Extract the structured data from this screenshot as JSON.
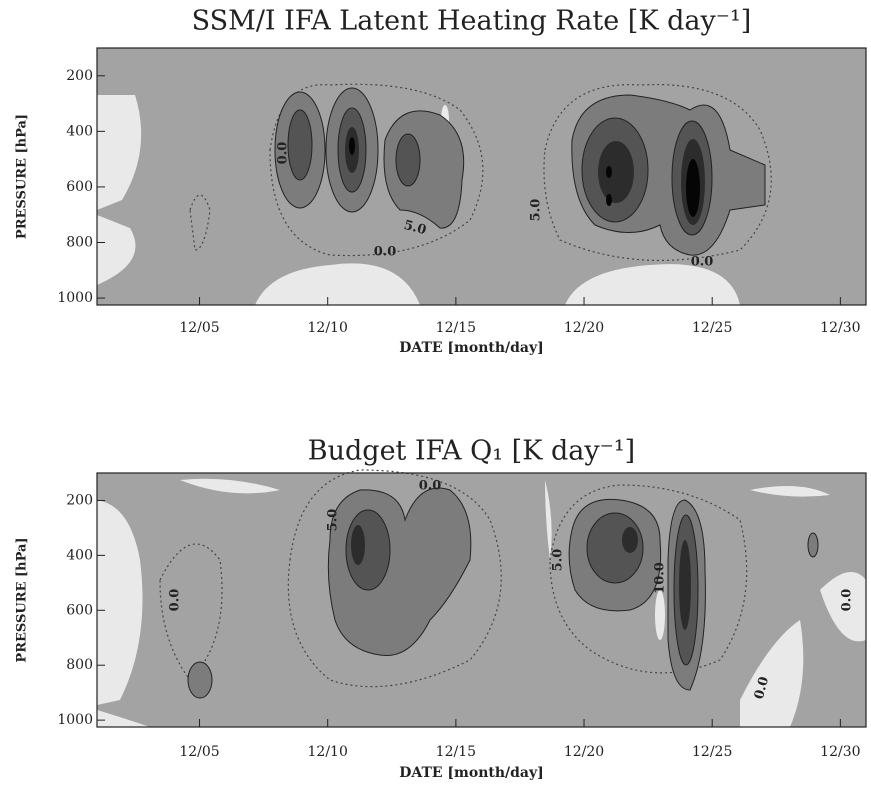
{
  "chart_data": [
    {
      "type": "contour",
      "title": "SSM/I IFA Latent Heating Rate [K day⁻¹]",
      "xlabel": "DATE [month/day]",
      "ylabel": "PRESSURE [hPa]",
      "xlim": [
        1,
        31
      ],
      "xticks": [
        {
          "value": 5,
          "label": "12/05"
        },
        {
          "value": 10,
          "label": "12/10"
        },
        {
          "value": 15,
          "label": "12/15"
        },
        {
          "value": 20,
          "label": "12/20"
        },
        {
          "value": 25,
          "label": "12/25"
        },
        {
          "value": 30,
          "label": "12/30"
        }
      ],
      "ylim": [
        1025,
        100
      ],
      "yticks": [
        200,
        400,
        600,
        800,
        1000
      ],
      "annotations": [
        "0.0",
        "5.0",
        "0.0",
        "5.0",
        "0.0"
      ]
    },
    {
      "type": "contour",
      "title": "Budget IFA Q₁ [K day⁻¹]",
      "xlabel": "DATE [month/day]",
      "ylabel": "PRESSURE [hPa]",
      "xlim": [
        1,
        31
      ],
      "xticks": [
        {
          "value": 5,
          "label": "12/05"
        },
        {
          "value": 10,
          "label": "12/10"
        },
        {
          "value": 15,
          "label": "12/15"
        },
        {
          "value": 20,
          "label": "12/20"
        },
        {
          "value": 25,
          "label": "12/25"
        },
        {
          "value": 30,
          "label": "12/30"
        }
      ],
      "ylim": [
        1025,
        100
      ],
      "yticks": [
        200,
        400,
        600,
        800,
        1000
      ],
      "annotations": [
        "0.0",
        "5.0",
        "0.0",
        "5.0",
        "10.0",
        "0.0",
        "0.0"
      ]
    }
  ]
}
